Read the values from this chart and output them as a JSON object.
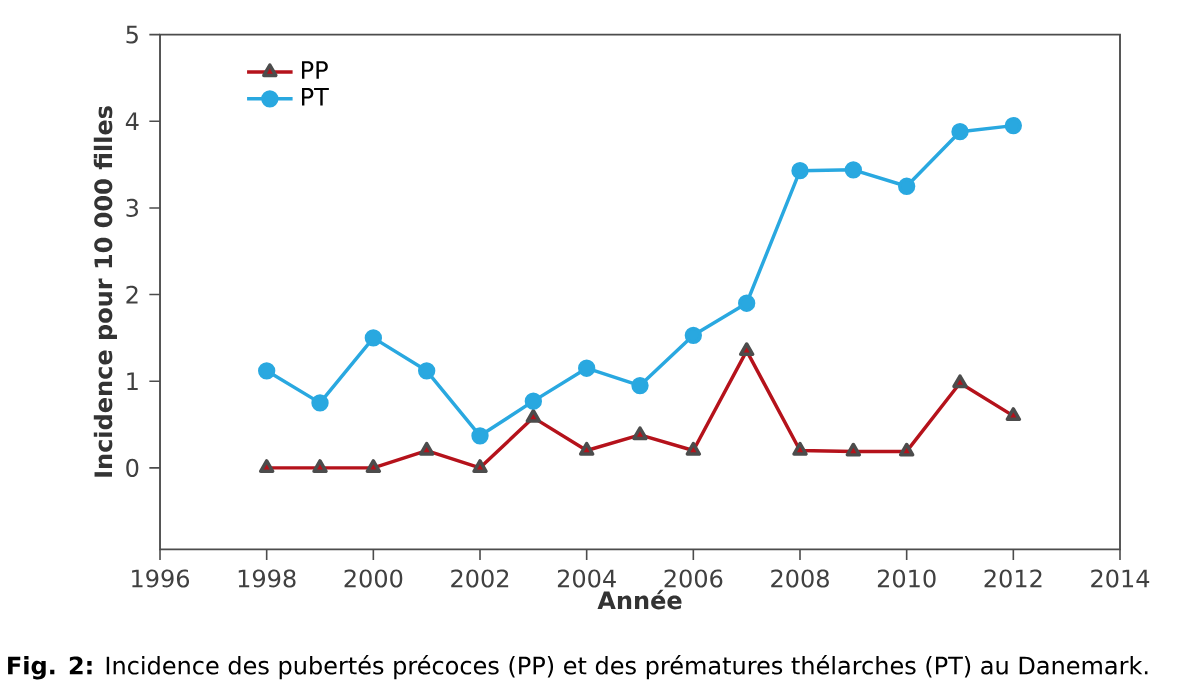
{
  "chart_data": {
    "type": "line",
    "xlabel": "Année",
    "ylabel": "Incidence pour 10 000 filles",
    "x": [
      1998,
      1999,
      2000,
      2001,
      2002,
      2003,
      2004,
      2005,
      2006,
      2007,
      2008,
      2009,
      2010,
      2011,
      2012
    ],
    "series": [
      {
        "name": "PP",
        "color": "#b5121b",
        "marker": "triangle",
        "values": [
          0,
          0,
          0,
          0.2,
          0,
          0.58,
          0.2,
          0.38,
          0.2,
          1.35,
          0.2,
          0.19,
          0.19,
          0.98,
          0.6
        ]
      },
      {
        "name": "PT",
        "color": "#29a8e0",
        "marker": "circle",
        "values": [
          1.12,
          0.75,
          1.5,
          1.12,
          0.37,
          0.77,
          1.15,
          0.95,
          1.53,
          1.9,
          3.43,
          3.44,
          3.25,
          3.88,
          3.95
        ]
      }
    ],
    "xlim": [
      1996,
      2014
    ],
    "xticks": [
      1996,
      1998,
      2000,
      2002,
      2004,
      2006,
      2008,
      2010,
      2012,
      2014
    ],
    "ylim": [
      -0.94,
      5
    ],
    "yticks": [
      0,
      1,
      2,
      3,
      4,
      5
    ],
    "grid": false,
    "legend": "top left",
    "line_style": "solid",
    "annotations": [
      "**Fig. 2:** Incidence des pubertés précoces (PP) et des prématures thélarches (PT) au Danemark."
    ]
  }
}
